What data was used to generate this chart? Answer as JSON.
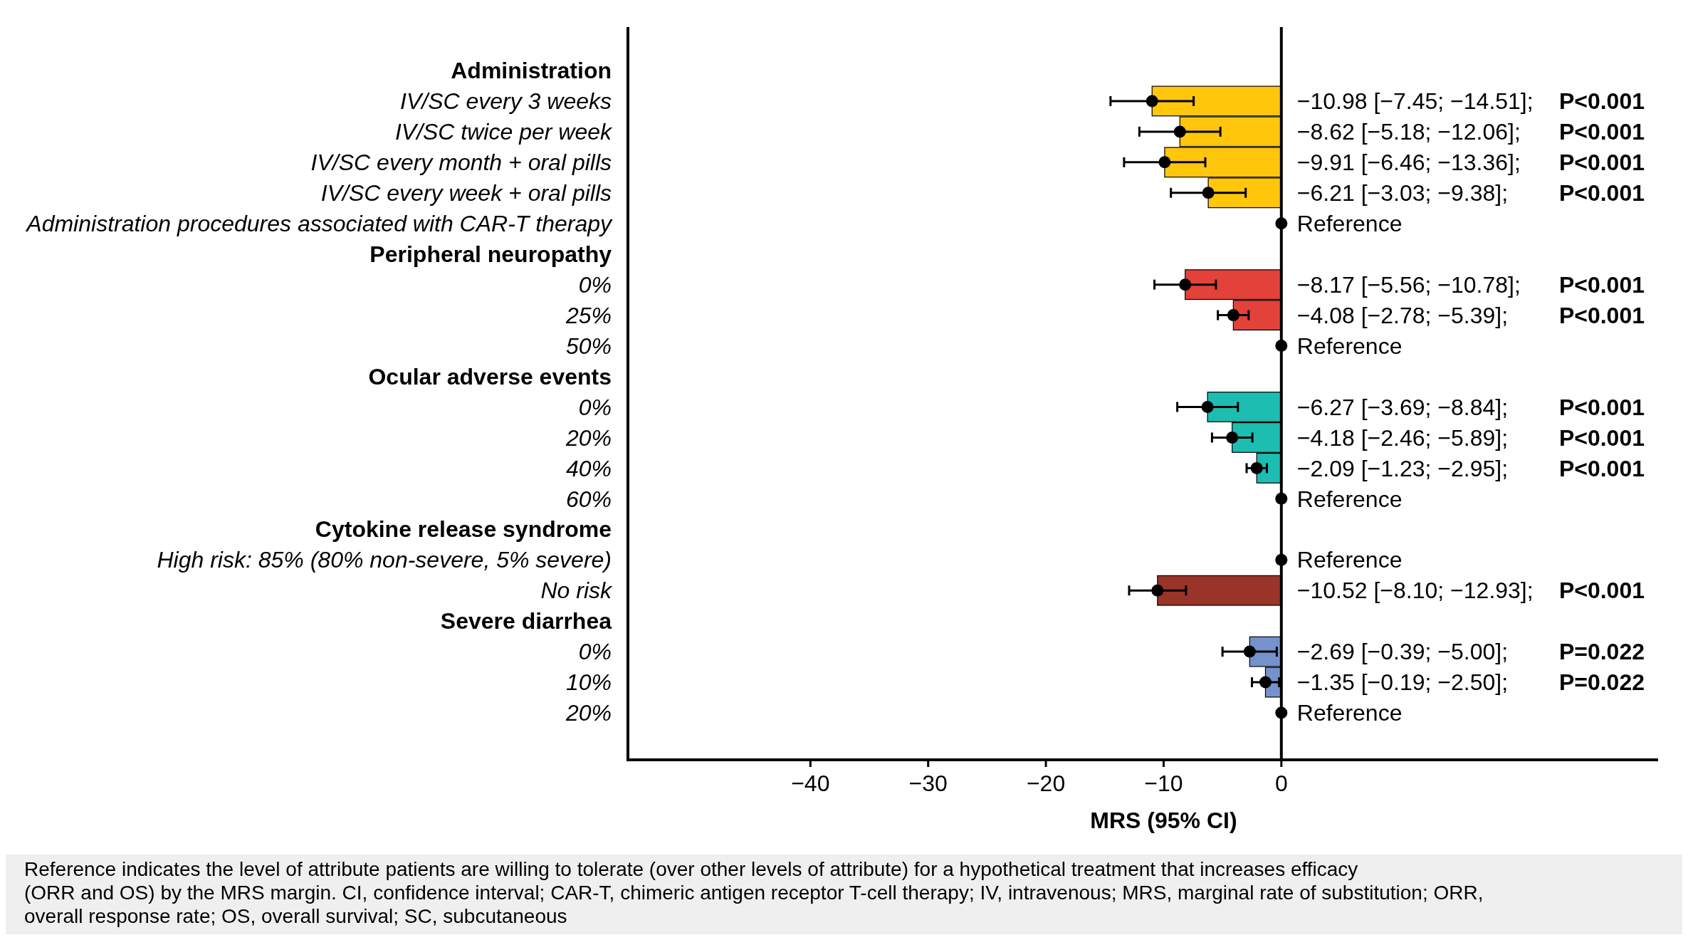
{
  "chart_data": {
    "type": "bar",
    "orientation": "horizontal",
    "xlabel": "MRS (95% CI)",
    "xlim": [
      -55.5,
      32
    ],
    "xticks": [
      -40,
      -30,
      -20,
      -10,
      0
    ],
    "marker": "circle",
    "categories": [
      "Administration",
      "IV/SC every 3 weeks",
      "IV/SC twice per week",
      "IV/SC every month + oral pills",
      "IV/SC every week + oral pills",
      "Administration procedures associated with CAR-T therapy",
      "Peripheral neuropathy",
      "0%",
      "25%",
      "50%",
      "Ocular adverse events",
      "0%",
      "20%",
      "40%",
      "60%",
      "Cytokine release syndrome",
      "High risk: 85% (80% non-severe, 5% severe)",
      "No risk",
      "Severe diarrhea",
      "0%",
      "10%",
      "20%"
    ],
    "series": [
      {
        "type": "bar",
        "values": [
          null,
          -10.98,
          -8.62,
          -9.91,
          -6.21,
          null,
          null,
          -8.17,
          -4.08,
          null,
          null,
          -6.27,
          -4.18,
          -2.09,
          null,
          null,
          null,
          -10.52,
          null,
          -2.69,
          -1.35,
          null
        ],
        "colors": [
          null,
          "#ffc60b",
          "#ffc60b",
          "#ffc60b",
          "#ffc60b",
          null,
          null,
          "#e2423a",
          "#e2423a",
          null,
          null,
          "#1dbdb1",
          "#1dbdb1",
          "#1dbdb1",
          null,
          null,
          null,
          "#9a3428",
          null,
          "#7592cc",
          "#7592cc",
          null
        ],
        "value_labels": [
          null,
          "−10.98 [−7.45; −14.51]; P<0.001",
          "−8.62 [−5.18; −12.06]; P<0.001",
          "−9.91 [−6.46; −13.36]; P<0.001",
          "−6.21 [−3.03; −9.38]; P<0.001",
          null,
          null,
          "−8.17 [−5.56; −10.78]; P<0.001",
          "−4.08 [−2.78; −5.39]; P<0.001",
          null,
          null,
          "−6.27 [−3.69; −8.84]; P<0.001",
          "−4.18 [−2.46; −5.89]; P<0.001",
          "−2.09 [−1.23; −2.95]; P<0.001",
          null,
          null,
          null,
          "−10.52 [−8.10; −12.93]; P<0.001",
          null,
          "−2.69 [−0.39; −5.00]; P=0.022",
          "−1.35 [−0.19; −2.50]; P=0.022",
          null
        ]
      },
      {
        "type": "scatter",
        "color": "#000000",
        "values": [
          null,
          -10.98,
          -8.62,
          -9.91,
          -6.21,
          0,
          null,
          -8.17,
          -4.08,
          0,
          null,
          -6.27,
          -4.18,
          -2.09,
          0,
          null,
          0,
          -10.52,
          null,
          -2.69,
          -1.35,
          0
        ],
        "errors": [
          null,
          [
            -14.51,
            -7.45
          ],
          [
            -12.06,
            -5.18
          ],
          [
            -13.36,
            -6.46
          ],
          [
            -9.38,
            -3.03
          ],
          null,
          null,
          [
            -10.78,
            -5.56
          ],
          [
            -5.39,
            -2.78
          ],
          null,
          null,
          [
            -8.84,
            -3.69
          ],
          [
            -5.89,
            -2.46
          ],
          [
            -2.95,
            -1.23
          ],
          null,
          null,
          null,
          [
            -12.93,
            -8.1
          ],
          null,
          [
            -5.0,
            -0.39
          ],
          [
            -2.5,
            -0.19
          ],
          null
        ],
        "value_labels": [
          null,
          null,
          null,
          null,
          null,
          "Reference",
          null,
          null,
          null,
          "Reference",
          null,
          null,
          null,
          null,
          "Reference",
          null,
          "Reference",
          null,
          null,
          null,
          null,
          "Reference"
        ]
      }
    ],
    "ref_lines": [
      {
        "axis": "x",
        "value": 0
      }
    ],
    "annotations": [
      "Reference indicates the level of attribute patients are willing to tolerate (over other levels of attribute) for a hypothetical treatment that increases efficacy (ORR and OS) by the MRS margin. CI, confidence interval; CAR-T, chimeric antigen receptor T-cell therapy; IV, intravenous; MRS, marginal rate of substitution; ORR, overall response rate; OS, overall survival; SC, subcutaneous"
    ]
  }
}
